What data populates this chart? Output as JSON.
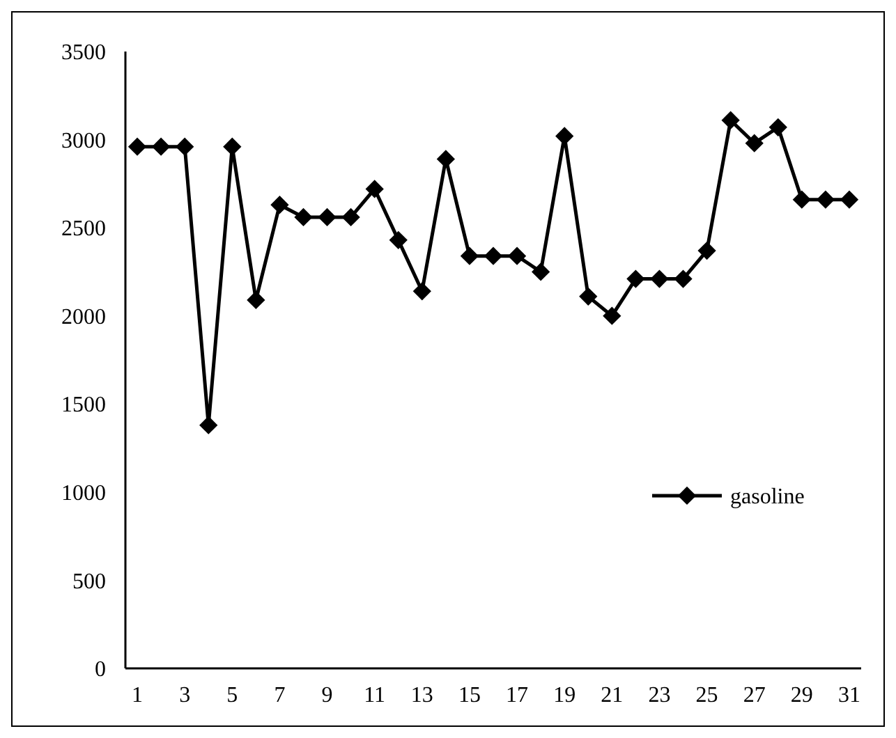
{
  "chart_data": {
    "type": "line",
    "x": [
      1,
      2,
      3,
      4,
      5,
      6,
      7,
      8,
      9,
      10,
      11,
      12,
      13,
      14,
      15,
      16,
      17,
      18,
      19,
      20,
      21,
      22,
      23,
      24,
      25,
      26,
      27,
      28,
      29,
      30,
      31
    ],
    "xlim": [
      0.5,
      31.5
    ],
    "xticks": [
      1,
      3,
      5,
      7,
      9,
      11,
      13,
      15,
      17,
      19,
      21,
      23,
      25,
      27,
      29,
      31
    ],
    "series": [
      {
        "name": "gasoline",
        "color": "#000000",
        "values": [
          2960,
          2960,
          2960,
          1380,
          2960,
          2090,
          2630,
          2560,
          2560,
          2560,
          2720,
          2430,
          2140,
          2890,
          2340,
          2340,
          2340,
          2250,
          3020,
          2110,
          2000,
          2210,
          2210,
          2210,
          2370,
          3110,
          2980,
          3070,
          2660,
          2660,
          2660
        ]
      }
    ],
    "ylim": [
      0,
      3500
    ],
    "yticks": [
      0,
      500,
      1000,
      1500,
      2000,
      2500,
      3000,
      3500
    ],
    "grid": false,
    "legend": "right",
    "marker": "diamond",
    "line_style": "solid"
  }
}
